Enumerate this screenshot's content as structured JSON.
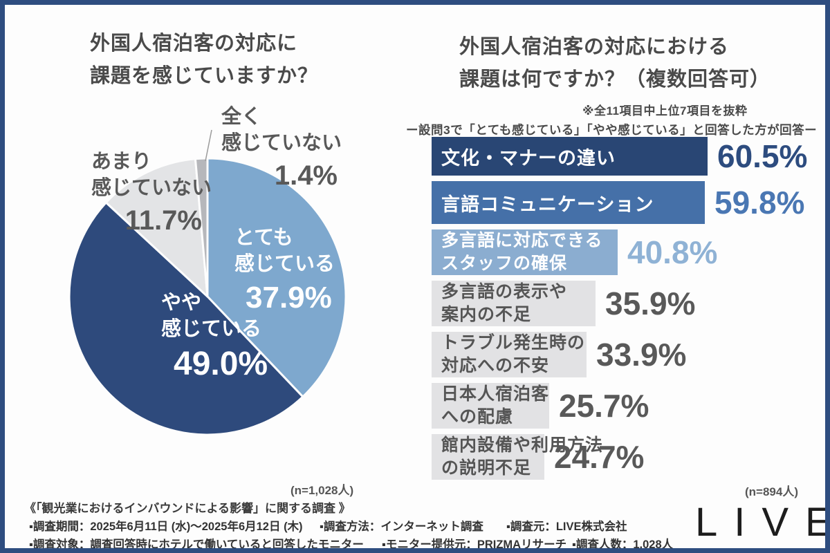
{
  "page": {
    "frame_color": "#2e4d80",
    "background": "#fdfdfd"
  },
  "pie_section": {
    "title_line1": "外国人宿泊客の対応に",
    "title_line2": "課題を感じていますか？",
    "n_label": "(n=1,028人)"
  },
  "bar_section": {
    "title_line1": "外国人宿泊客の対応における",
    "title_line2": "課題は何ですか？（複数回答可）",
    "subnote": "※全11項目中上位7項目を抜粋",
    "filter_note": "ー設問3で「とても感じている」「やや感じている」と回答した方が回答ー",
    "n_label": "(n=894人)"
  },
  "chart_data": [
    {
      "type": "pie",
      "title": "外国人宿泊客の対応に課題を感じていますか？",
      "n": "n=1,028人",
      "start_angle": "top",
      "direction": "clockwise",
      "slices": [
        {
          "label": "とても感じている",
          "label_lines": [
            "とても",
            "感じている"
          ],
          "value": 37.9,
          "value_label": "37.9%",
          "color": "#7ea8ce",
          "label_placement": "inside"
        },
        {
          "label": "やや感じている",
          "label_lines": [
            "やや",
            "感じている"
          ],
          "value": 49.0,
          "value_label": "49.0%",
          "color": "#2e4a7c",
          "label_placement": "inside"
        },
        {
          "label": "あまり感じていない",
          "label_lines": [
            "あまり",
            "感じていない"
          ],
          "value": 11.7,
          "value_label": "11.7%",
          "color": "#e3e4e6",
          "label_placement": "outside"
        },
        {
          "label": "全く感じていない",
          "label_lines": [
            "全く",
            "感じていない"
          ],
          "value": 1.4,
          "value_label": "1.4%",
          "color": "#b6b7bb",
          "label_placement": "outside"
        }
      ]
    },
    {
      "type": "bar",
      "orientation": "horizontal",
      "title": "外国人宿泊客の対応における課題は何ですか？（複数回答可）",
      "n": "n=894人",
      "xlim": [
        0,
        65
      ],
      "categories": [
        "文化・マナーの違い",
        "言語コミュニケーション",
        "多言語に対応できるスタッフの確保",
        "多言語の表示や案内の不足",
        "トラブル発生時の対応への不安",
        "日本人宿泊客への配慮",
        "館内設備や利用方法の説明不足"
      ],
      "values": [
        60.5,
        59.8,
        40.8,
        35.9,
        33.9,
        25.7,
        24.7
      ],
      "bars": [
        {
          "label_lines": [
            "文化・マナーの違い"
          ],
          "value": 60.5,
          "value_label": "60.5%",
          "bar_color": "#294674",
          "label_color": "#ffffff",
          "value_color": "#2d4c7f"
        },
        {
          "label_lines": [
            "言語コミュニケーション"
          ],
          "value": 59.8,
          "value_label": "59.8%",
          "bar_color": "#4570a8",
          "label_color": "#ffffff",
          "value_color": "#4a77b3"
        },
        {
          "label_lines": [
            "多言語に対応できる",
            "スタッフの確保"
          ],
          "value": 40.8,
          "value_label": "40.8%",
          "bar_color": "#8badd0",
          "label_color": "#ffffff",
          "value_color": "#8fb2d5"
        },
        {
          "label_lines": [
            "多言語の表示や",
            "案内の不足"
          ],
          "value": 35.9,
          "value_label": "35.9%",
          "bar_color": "#e2e2e4",
          "label_color": "#555555",
          "value_color": "#595959"
        },
        {
          "label_lines": [
            "トラブル発生時の",
            "対応への不安"
          ],
          "value": 33.9,
          "value_label": "33.9%",
          "bar_color": "#e2e2e4",
          "label_color": "#555555",
          "value_color": "#595959"
        },
        {
          "label_lines": [
            "日本人宿泊客",
            "への配慮"
          ],
          "value": 25.7,
          "value_label": "25.7%",
          "bar_color": "#e2e2e4",
          "label_color": "#555555",
          "value_color": "#595959"
        },
        {
          "label_lines": [
            "館内設備や利用方法",
            "の説明不足"
          ],
          "value": 24.7,
          "value_label": "24.7%",
          "bar_color": "#e2e2e4",
          "label_color": "#555555",
          "value_color": "#595959"
        }
      ]
    }
  ],
  "footer": {
    "survey_title": "《「観光業におけるインバウンドによる影響」に関する調査 》",
    "items_row1": [
      "▪調査期間：2025年6月11日 (水)〜2025年6月12日 (木)",
      "▪調査方法：インターネット調査",
      "▪調査元：LIVE株式会社"
    ],
    "items_row2": [
      "▪調査対象：調査回答時にホテルで働いていると回答したモニター",
      "▪モニター提供元：PRIZMAリサーチ",
      "▪調査人数：1,028人"
    ],
    "logo_text": "LIVE"
  }
}
